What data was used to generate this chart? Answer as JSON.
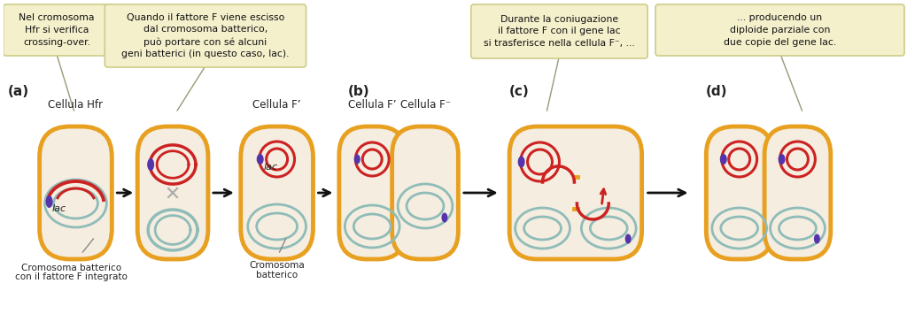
{
  "bg_color": "#ffffff",
  "cell_fill": "#f5ede0",
  "cell_border": "#e8a020",
  "chromosome_color": "#8fbcb8",
  "f_factor_color": "#cc2222",
  "lac_mark_color": "#5533aa",
  "arrow_color": "#111111",
  "callout_bg": "#f5f0cc",
  "callout_border": "#cccc88",
  "label_color": "#333333",
  "texts": {
    "callout1": "Nel cromosoma\nHfr si verifica\ncrossing-over.",
    "callout2": "Quando il fattore F viene escisso\ndal cromosoma batterico,\npuò portare con sé alcuni\ngeni batterici (in questo caso, lac).",
    "callout3": "Durante la coniugazione\nil fattore F con il gene lac\nsi trasferisce nella cellula F⁻, ...",
    "callout4": "... producendo un\ndiploide parziale con\ndue copie del gene lac.",
    "label_a": "(a)",
    "label_b": "(b)",
    "label_c": "(c)",
    "label_d": "(d)",
    "cell1_title": "Cellula Hfr",
    "cell2_title": "Cellula F’",
    "cell3a_title": "Cellula F’",
    "cell3b_title": "Cellula F⁻",
    "bottom1a": "Cromosoma batterico",
    "bottom1b": "con il fattore F integrato",
    "bottom2a": "Cromosoma",
    "bottom2b": "batterico",
    "lac_label": "lac",
    "lac_label2": "lac"
  }
}
